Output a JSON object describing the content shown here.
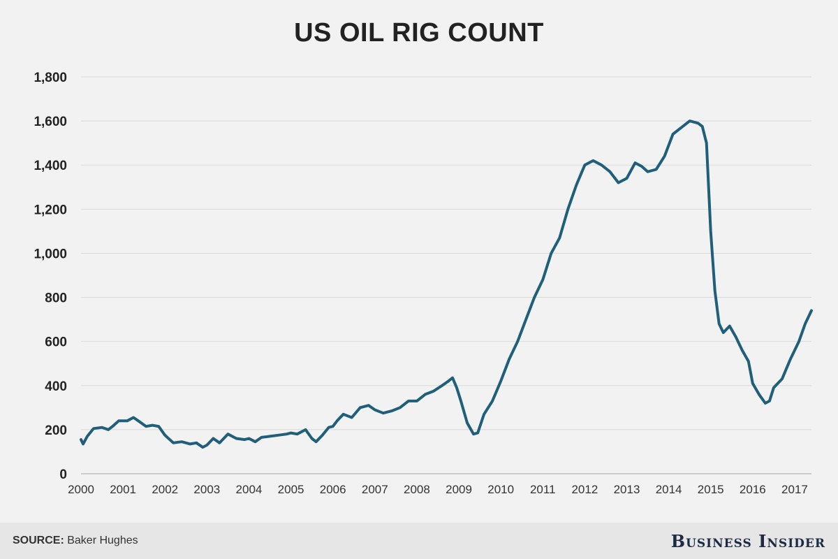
{
  "chart_data": {
    "type": "line",
    "title": "US OIL RIG COUNT",
    "xlabel": "",
    "ylabel": "",
    "ylim": [
      0,
      1800
    ],
    "xlim": [
      2000,
      2017.4
    ],
    "yticks": [
      "0",
      "200",
      "400",
      "600",
      "800",
      "1,000",
      "1,200",
      "1,400",
      "1,600",
      "1,800"
    ],
    "xticks": [
      "2000",
      "2001",
      "2002",
      "2003",
      "2004",
      "2005",
      "2006",
      "2007",
      "2008",
      "2009",
      "2010",
      "2011",
      "2012",
      "2013",
      "2014",
      "2015",
      "2016",
      "2017"
    ],
    "grid": true,
    "line_color": "#1f5f7a",
    "series": [
      {
        "x": [
          2000.0,
          2000.05,
          2000.15,
          2000.3,
          2000.5,
          2000.65,
          2000.75,
          2000.9,
          2001.0,
          2001.1,
          2001.25,
          2001.4,
          2001.55,
          2001.7,
          2001.85,
          2002.0,
          2002.2,
          2002.4,
          2002.6,
          2002.75,
          2002.9,
          2003.0,
          2003.15,
          2003.3,
          2003.5,
          2003.7,
          2003.9,
          2004.0,
          2004.15,
          2004.3,
          2004.5,
          2004.7,
          2004.9,
          2005.0,
          2005.15,
          2005.35,
          2005.5,
          2005.6,
          2005.75,
          2005.9,
          2006.0,
          2006.1,
          2006.25,
          2006.45,
          2006.65,
          2006.85,
          2007.0,
          2007.2,
          2007.4,
          2007.6,
          2007.8,
          2008.0,
          2008.2,
          2008.4,
          2008.6,
          2008.75,
          2008.85,
          2008.95,
          2009.05,
          2009.2,
          2009.35,
          2009.45,
          2009.6,
          2009.8,
          2010.0,
          2010.2,
          2010.4,
          2010.6,
          2010.8,
          2011.0,
          2011.2,
          2011.4,
          2011.6,
          2011.8,
          2012.0,
          2012.2,
          2012.4,
          2012.6,
          2012.8,
          2013.0,
          2013.2,
          2013.35,
          2013.5,
          2013.7,
          2013.9,
          2014.1,
          2014.3,
          2014.5,
          2014.7,
          2014.8,
          2014.9,
          2015.0,
          2015.1,
          2015.2,
          2015.3,
          2015.45,
          2015.6,
          2015.75,
          2015.9,
          2016.0,
          2016.15,
          2016.3,
          2016.4,
          2016.5,
          2016.7,
          2016.9,
          2017.1,
          2017.25,
          2017.4
        ],
        "values": [
          155,
          135,
          170,
          205,
          210,
          200,
          215,
          240,
          240,
          240,
          255,
          235,
          215,
          220,
          215,
          175,
          140,
          145,
          135,
          140,
          120,
          130,
          160,
          140,
          180,
          160,
          155,
          160,
          145,
          165,
          170,
          175,
          180,
          185,
          180,
          200,
          160,
          145,
          175,
          210,
          215,
          240,
          270,
          255,
          300,
          310,
          290,
          275,
          285,
          300,
          330,
          330,
          360,
          375,
          400,
          420,
          435,
          390,
          330,
          230,
          180,
          185,
          270,
          330,
          420,
          520,
          600,
          700,
          800,
          880,
          1000,
          1070,
          1200,
          1310,
          1400,
          1420,
          1400,
          1370,
          1320,
          1340,
          1410,
          1395,
          1370,
          1380,
          1440,
          1540,
          1570,
          1600,
          1590,
          1575,
          1500,
          1100,
          830,
          680,
          640,
          670,
          620,
          560,
          510,
          410,
          360,
          320,
          330,
          390,
          430,
          520,
          600,
          680,
          740
        ]
      }
    ]
  },
  "footer": {
    "source_label": "SOURCE:",
    "source_text": "Baker Hughes",
    "brand": "Business Insider"
  },
  "colors": {
    "line": "#1f5f7a",
    "grid": "#d9d9d9",
    "background": "#f2f2f2",
    "footer_bg": "#e6e6e6"
  }
}
